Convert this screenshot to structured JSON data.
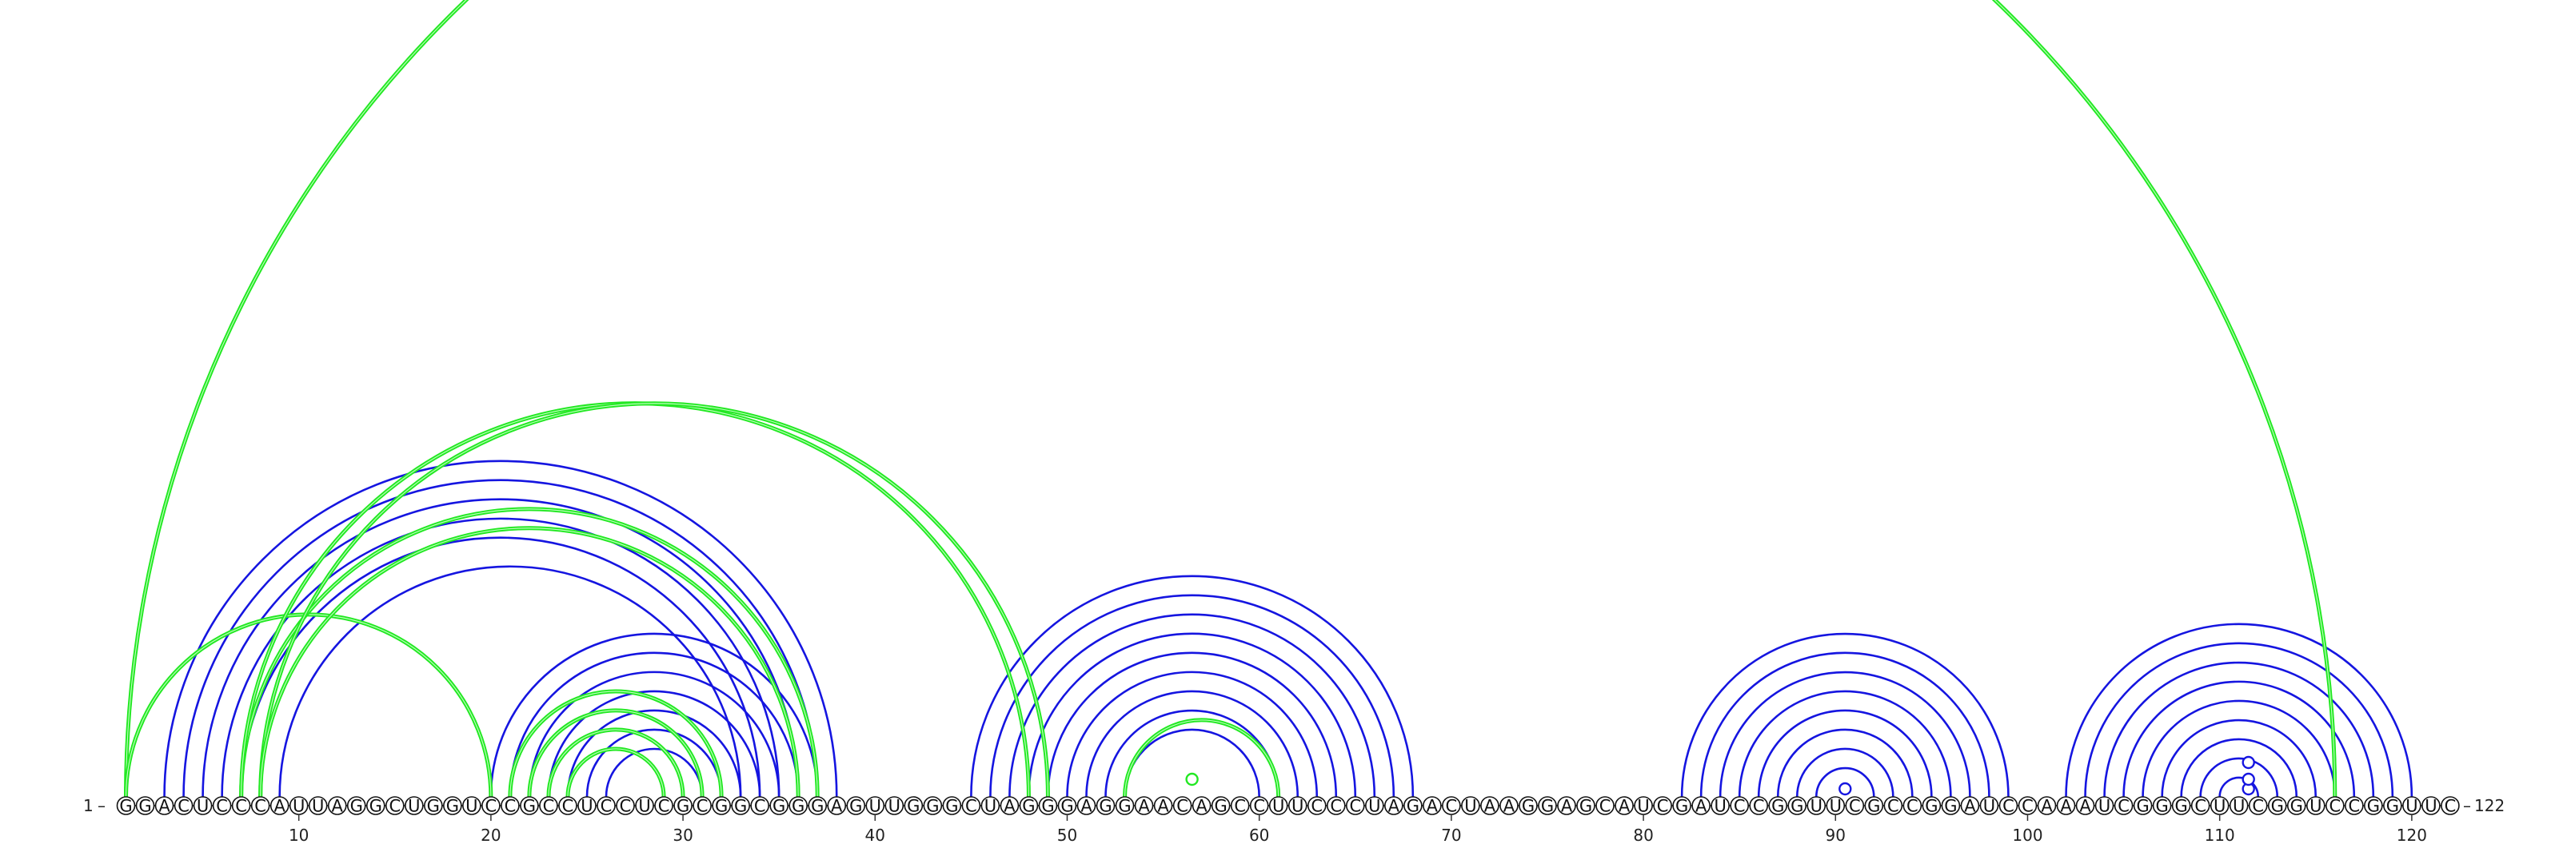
{
  "sequence": "GGACUCCCAUUAGGCUGGUCCGCCUCCUCGCGGCGGGAGUUGGGCUAGGGAGGAACAGCCUUCCCUAGACUAAGGAGCAUCGAUCCGGUUCGCCGGAUCCAAAUCGGGCUUCGGUCCGGUUC",
  "start_label": "1",
  "end_label": "122",
  "tick_labels": [
    "10",
    "20",
    "30",
    "40",
    "50",
    "60",
    "70",
    "80",
    "90",
    "100",
    "110",
    "120"
  ],
  "colors": {
    "primary": "#1515e0",
    "secondary": "#22e822",
    "nucleotide_outline": "#111111"
  },
  "arc_sets": [
    {
      "set": "primary",
      "color": "#1515e0",
      "pairs": [
        [
          3,
          38
        ],
        [
          4,
          37
        ],
        [
          5,
          36
        ],
        [
          6,
          35
        ],
        [
          7,
          34
        ],
        [
          9,
          33
        ],
        [
          20,
          37
        ],
        [
          21,
          36
        ],
        [
          22,
          35
        ],
        [
          23,
          34
        ],
        [
          24,
          33
        ],
        [
          25,
          32
        ],
        [
          26,
          31
        ],
        [
          45,
          68
        ],
        [
          46,
          67
        ],
        [
          47,
          66
        ],
        [
          48,
          65
        ],
        [
          49,
          64
        ],
        [
          50,
          63
        ],
        [
          51,
          62
        ],
        [
          52,
          61
        ],
        [
          53,
          60
        ],
        [
          82,
          99
        ],
        [
          83,
          98
        ],
        [
          84,
          97
        ],
        [
          85,
          96
        ],
        [
          86,
          95
        ],
        [
          87,
          94
        ],
        [
          88,
          93
        ],
        [
          89,
          92
        ],
        [
          102,
          120
        ],
        [
          103,
          119
        ],
        [
          104,
          118
        ],
        [
          105,
          117
        ],
        [
          106,
          116
        ],
        [
          107,
          115
        ],
        [
          108,
          114
        ],
        [
          109,
          113
        ],
        [
          110,
          112
        ]
      ]
    },
    {
      "set": "secondary",
      "color": "#22e822",
      "pairs": [
        [
          1,
          116
        ],
        [
          1,
          20
        ],
        [
          7,
          37
        ],
        [
          7,
          48
        ],
        [
          8,
          49
        ],
        [
          8,
          36
        ],
        [
          21,
          32
        ],
        [
          22,
          31
        ],
        [
          23,
          30
        ],
        [
          24,
          29
        ],
        [
          53,
          61
        ]
      ]
    }
  ],
  "markers": [
    {
      "position": 56.5,
      "height": 20,
      "set": "secondary"
    },
    {
      "position": 90.5,
      "height": 8,
      "set": "primary"
    },
    {
      "position": 111.5,
      "height": 8,
      "set": "primary"
    },
    {
      "position": 111.5,
      "height": 20,
      "set": "primary"
    },
    {
      "position": 111.5,
      "height": 41,
      "set": "primary"
    }
  ]
}
